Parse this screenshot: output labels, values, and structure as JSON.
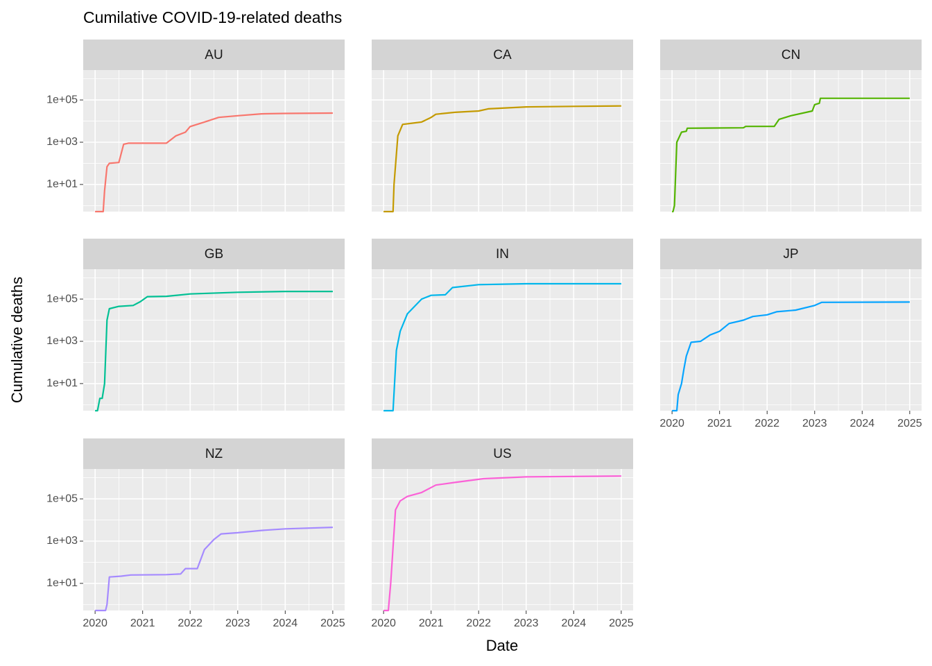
{
  "chart_data": {
    "type": "line",
    "title": "Cumilative COVID-19-related deaths",
    "x_label": "Date",
    "y_label": "Cumulative deaths",
    "log_y": true,
    "grid": true,
    "xlim": [
      2019.75,
      2025.25
    ],
    "xticks": [
      2020,
      2021,
      2022,
      2023,
      2024,
      2025
    ],
    "xminor": [
      2020.5,
      2021.5,
      2022.5,
      2023.5,
      2024.5
    ],
    "ylim": [
      0.52,
      2600000
    ],
    "yticks": [
      {
        "value": 10,
        "label": "1e+01"
      },
      {
        "value": 1000,
        "label": "1e+03"
      },
      {
        "value": 100000,
        "label": "1e+05"
      }
    ],
    "yminor": [
      1,
      100,
      10000,
      1000000
    ],
    "panels": [
      {
        "title": "AU",
        "color": "#F8766D",
        "x": [
          2020.0,
          2020.17,
          2020.2,
          2020.25,
          2020.3,
          2020.5,
          2020.6,
          2020.7,
          2021.5,
          2021.7,
          2021.9,
          2022.0,
          2022.3,
          2022.6,
          2023.0,
          2023.5,
          2024.0,
          2025.0
        ],
        "values": [
          0,
          0,
          5,
          70,
          100,
          110,
          800,
          900,
          900,
          2000,
          3000,
          5500,
          9000,
          15000,
          18000,
          22000,
          23000,
          24000
        ]
      },
      {
        "title": "CA",
        "color": "#C49A00",
        "x": [
          2020.0,
          2020.2,
          2020.22,
          2020.3,
          2020.4,
          2020.8,
          2021.0,
          2021.1,
          2021.5,
          2022.0,
          2022.2,
          2023.0,
          2024.0,
          2025.0
        ],
        "values": [
          0,
          0,
          10,
          2000,
          7000,
          9000,
          15000,
          21000,
          26000,
          30000,
          38000,
          47000,
          50000,
          52000
        ]
      },
      {
        "title": "CN",
        "color": "#53B400",
        "x": [
          2020.0,
          2020.02,
          2020.05,
          2020.1,
          2020.2,
          2020.3,
          2020.32,
          2021.5,
          2021.55,
          2022.15,
          2022.25,
          2022.5,
          2022.95,
          2023.0,
          2023.1,
          2023.12,
          2025.0
        ],
        "values": [
          0,
          0,
          1,
          1000,
          3000,
          3300,
          4600,
          4800,
          5600,
          5600,
          12000,
          18000,
          30000,
          60000,
          70000,
          120000,
          120000
        ]
      },
      {
        "title": "GB",
        "color": "#00C094",
        "x": [
          2020.0,
          2020.05,
          2020.1,
          2020.15,
          2020.2,
          2020.25,
          2020.3,
          2020.5,
          2020.8,
          2020.95,
          2021.1,
          2021.5,
          2022.0,
          2023.0,
          2024.0,
          2025.0
        ],
        "values": [
          0,
          0,
          2,
          2,
          10,
          10000,
          35000,
          45000,
          50000,
          75000,
          130000,
          135000,
          175000,
          210000,
          230000,
          230000
        ]
      },
      {
        "title": "IN",
        "color": "#00B6EB",
        "x": [
          2020.0,
          2020.2,
          2020.27,
          2020.35,
          2020.5,
          2020.8,
          2021.0,
          2021.3,
          2021.45,
          2022.0,
          2023.0,
          2025.0
        ],
        "values": [
          0,
          0,
          370,
          3000,
          20000,
          100000,
          150000,
          160000,
          350000,
          480000,
          530000,
          530000
        ]
      },
      {
        "title": "JP",
        "color": "#06A4FF",
        "x": [
          2020.0,
          2020.1,
          2020.13,
          2020.2,
          2020.25,
          2020.3,
          2020.4,
          2020.6,
          2020.8,
          2021.0,
          2021.2,
          2021.5,
          2021.7,
          2022.0,
          2022.2,
          2022.6,
          2023.0,
          2023.15,
          2025.0
        ],
        "values": [
          0,
          0,
          3,
          10,
          50,
          200,
          900,
          1000,
          2000,
          3000,
          7000,
          10000,
          15000,
          18000,
          25000,
          30000,
          50000,
          70000,
          72000
        ]
      },
      {
        "title": "NZ",
        "color": "#A58AFF",
        "x": [
          2020.0,
          2020.22,
          2020.25,
          2020.3,
          2020.55,
          2020.75,
          2021.5,
          2021.8,
          2021.9,
          2022.15,
          2022.3,
          2022.5,
          2022.65,
          2023.0,
          2023.5,
          2024.0,
          2025.0
        ],
        "values": [
          0,
          0,
          1,
          20,
          22,
          25,
          26,
          28,
          50,
          50,
          400,
          1200,
          2200,
          2500,
          3200,
          3800,
          4500
        ]
      },
      {
        "title": "US",
        "color": "#FB61D7",
        "x": [
          2020.0,
          2020.1,
          2020.15,
          2020.25,
          2020.35,
          2020.5,
          2020.8,
          2021.1,
          2021.5,
          2022.1,
          2023.0,
          2025.0
        ],
        "values": [
          0,
          0,
          10,
          30000,
          80000,
          130000,
          200000,
          450000,
          600000,
          900000,
          1100000,
          1200000
        ]
      }
    ]
  }
}
